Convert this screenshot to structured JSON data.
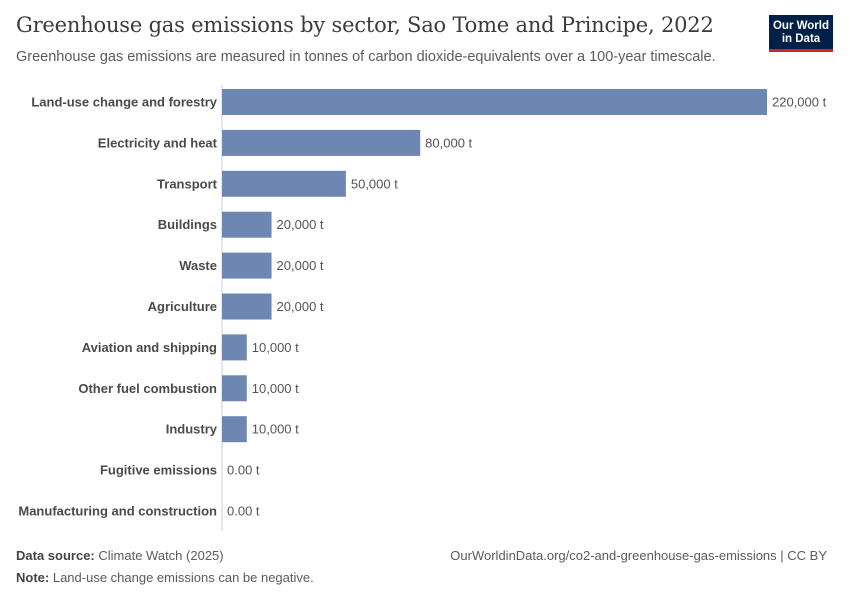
{
  "header": {
    "title": "Greenhouse gas emissions by sector, Sao Tome and Principe, 2022",
    "subtitle": "Greenhouse gas emissions are measured in tonnes of carbon dioxide-equivalents over a 100-year timescale."
  },
  "logo": {
    "line1": "Our World",
    "line2": "in Data"
  },
  "chart_data": {
    "type": "bar",
    "orientation": "horizontal",
    "title": "Greenhouse gas emissions by sector, Sao Tome and Principe, 2022",
    "unit": "t",
    "bar_color": "#6d87b2",
    "categories": [
      "Land-use change and forestry",
      "Electricity and heat",
      "Transport",
      "Buildings",
      "Waste",
      "Agriculture",
      "Aviation and shipping",
      "Other fuel combustion",
      "Industry",
      "Fugitive emissions",
      "Manufacturing and construction"
    ],
    "values": [
      220000,
      80000,
      50000,
      20000,
      20000,
      20000,
      10000,
      10000,
      10000,
      0,
      0
    ],
    "value_labels": [
      "220,000 t",
      "80,000 t",
      "50,000 t",
      "20,000 t",
      "20,000 t",
      "20,000 t",
      "10,000 t",
      "10,000 t",
      "10,000 t",
      "0.00 t",
      "0.00 t"
    ],
    "xlim": [
      0,
      220000
    ]
  },
  "footer": {
    "source_label": "Data source:",
    "source_text": "Climate Watch (2025)",
    "note_label": "Note:",
    "note_text": "Land-use change emissions can be negative.",
    "url": "OurWorldinData.org/co2-and-greenhouse-gas-emissions | CC BY"
  }
}
